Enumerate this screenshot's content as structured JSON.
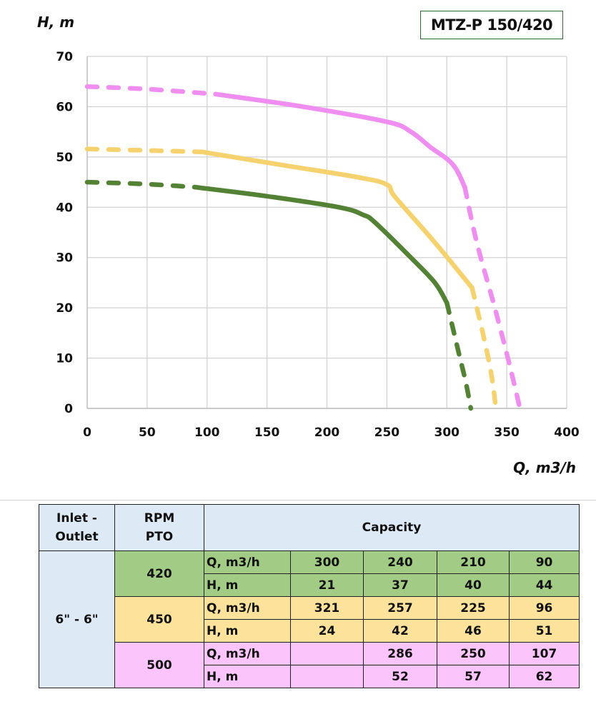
{
  "model": "MTZ-P 150/420",
  "chart_data": {
    "type": "line",
    "title": "MTZ-P 150/420",
    "xlabel": "Q, m3/h",
    "ylabel": "H, m",
    "xlim": [
      0,
      400
    ],
    "ylim": [
      0,
      70
    ],
    "xticks": [
      "0",
      "50",
      "100",
      "150",
      "200",
      "250",
      "300",
      "350",
      "400"
    ],
    "yticks": [
      "0",
      "10",
      "20",
      "30",
      "40",
      "50",
      "60",
      "70"
    ],
    "grid": true,
    "legend": "none",
    "series": [
      {
        "name": "420 RPM",
        "color": "#548235",
        "dashed_start": [
          [
            0,
            45
          ],
          [
            50,
            44.6
          ],
          [
            90,
            44
          ]
        ],
        "solid": [
          [
            90,
            44
          ],
          [
            150,
            42.2
          ],
          [
            210,
            40
          ],
          [
            230,
            38.5
          ],
          [
            240,
            37
          ],
          [
            270,
            30
          ],
          [
            290,
            25
          ],
          [
            300,
            21
          ]
        ],
        "dashed_end": [
          [
            300,
            21
          ],
          [
            310,
            11
          ],
          [
            316,
            5
          ],
          [
            320,
            0
          ]
        ]
      },
      {
        "name": "450 RPM",
        "color": "#f6d26e",
        "dashed_start": [
          [
            0,
            51.6
          ],
          [
            50,
            51.3
          ],
          [
            96,
            51
          ]
        ],
        "solid": [
          [
            96,
            51
          ],
          [
            160,
            48.5
          ],
          [
            225,
            46
          ],
          [
            250,
            44.5
          ],
          [
            257,
            42
          ],
          [
            290,
            33
          ],
          [
            321,
            24
          ]
        ],
        "dashed_end": [
          [
            321,
            24
          ],
          [
            330,
            15
          ],
          [
            337,
            7
          ],
          [
            341,
            0
          ]
        ]
      },
      {
        "name": "500 RPM",
        "color": "#ef8ef0",
        "dashed_start": [
          [
            0,
            64
          ],
          [
            50,
            63.5
          ],
          [
            107,
            62.5
          ]
        ],
        "solid": [
          [
            107,
            62.5
          ],
          [
            180,
            60
          ],
          [
            250,
            57
          ],
          [
            270,
            55
          ],
          [
            286,
            52
          ],
          [
            305,
            48.5
          ],
          [
            315,
            44
          ]
        ],
        "dashed_end": [
          [
            315,
            44
          ],
          [
            325,
            33
          ],
          [
            340,
            20
          ],
          [
            352,
            9
          ],
          [
            361,
            0
          ]
        ]
      }
    ]
  },
  "table": {
    "headers": {
      "inlet_outlet": [
        "Inlet -",
        "Outlet"
      ],
      "rpm_pto": [
        "RPM",
        "PTO"
      ],
      "capacity": "Capacity"
    },
    "connection": "6\" - 6\"",
    "groups": [
      {
        "rpm": "420",
        "rows": [
          {
            "label": "Q, m3/h",
            "values": [
              "300",
              "240",
              "210",
              "90"
            ]
          },
          {
            "label": "H, m",
            "values": [
              "21",
              "37",
              "40",
              "44"
            ]
          }
        ]
      },
      {
        "rpm": "450",
        "rows": [
          {
            "label": "Q, m3/h",
            "values": [
              "321",
              "257",
              "225",
              "96"
            ]
          },
          {
            "label": "H, m",
            "values": [
              "24",
              "42",
              "46",
              "51"
            ]
          }
        ]
      },
      {
        "rpm": "500",
        "rows": [
          {
            "label": "Q, m3/h",
            "values": [
              "",
              "286",
              "250",
              "107"
            ]
          },
          {
            "label": "H, m",
            "values": [
              "",
              "52",
              "57",
              "62"
            ]
          }
        ]
      }
    ]
  }
}
